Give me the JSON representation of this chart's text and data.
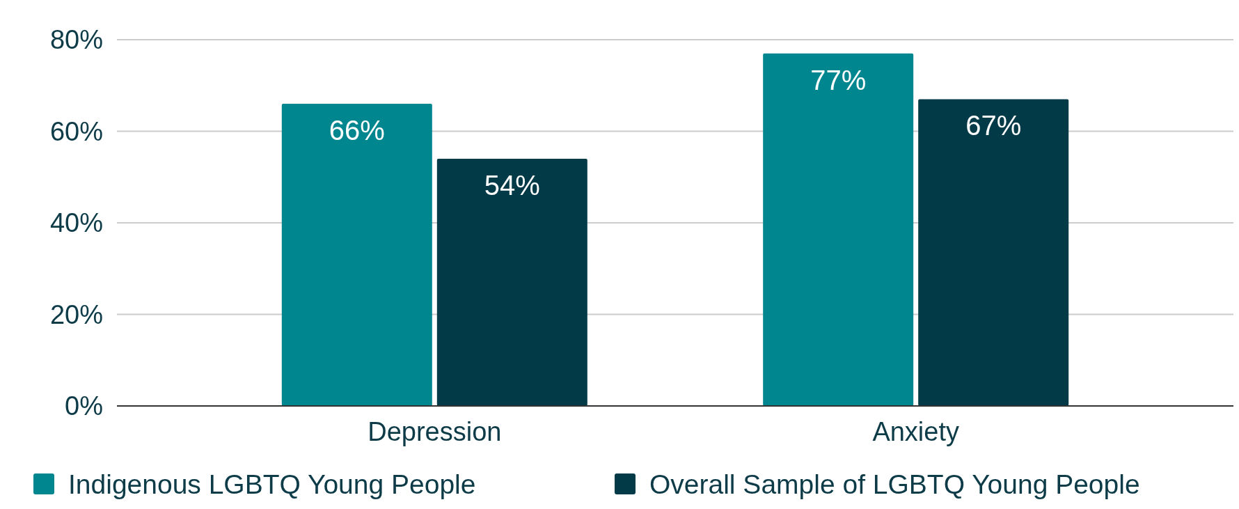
{
  "chart_data": {
    "type": "bar",
    "categories": [
      "Depression",
      "Anxiety"
    ],
    "series": [
      {
        "name": "Indigenous LGBTQ Young People",
        "color": "#00868f",
        "values": [
          66,
          77
        ]
      },
      {
        "name": "Overall Sample of LGBTQ Young People",
        "color": "#023a47",
        "values": [
          54,
          67
        ]
      }
    ],
    "ylim": [
      0,
      80
    ],
    "yticks": [
      {
        "value": 0,
        "label": "0%"
      },
      {
        "value": 20,
        "label": "20%"
      },
      {
        "value": 40,
        "label": "40%"
      },
      {
        "value": 60,
        "label": "60%"
      },
      {
        "value": 80,
        "label": "80%"
      }
    ],
    "value_labels": [
      [
        "66%",
        "77%"
      ],
      [
        "54%",
        "67%"
      ]
    ],
    "grid": "y",
    "legend": "bottom"
  }
}
